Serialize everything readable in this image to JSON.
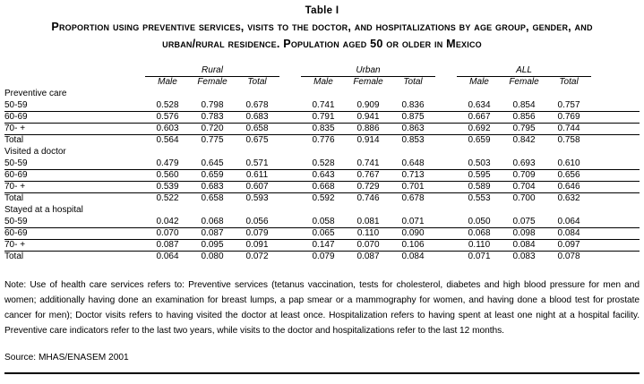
{
  "table": {
    "label": "Table I",
    "title": "Proportion using preventive services, visits to the doctor, and hospitalizations by age group, gender, and urban/rural residence. Population aged 50 or older in Mexico",
    "groups": [
      "Rural",
      "Urban",
      "ALL"
    ],
    "sub_columns": [
      "Male",
      "Female",
      "Total"
    ],
    "sections": [
      {
        "label": "Preventive care",
        "rows": [
          {
            "label": "50-59",
            "values": [
              "0.528",
              "0.798",
              "0.678",
              "0.741",
              "0.909",
              "0.836",
              "0.634",
              "0.854",
              "0.757"
            ]
          },
          {
            "label": "60-69",
            "values": [
              "0.576",
              "0.783",
              "0.683",
              "0.791",
              "0.941",
              "0.875",
              "0.667",
              "0.856",
              "0.769"
            ]
          },
          {
            "label": "70- +",
            "values": [
              "0.603",
              "0.720",
              "0.658",
              "0.835",
              "0.886",
              "0.863",
              "0.692",
              "0.795",
              "0.744"
            ]
          },
          {
            "label": "Total",
            "values": [
              "0.564",
              "0.775",
              "0.675",
              "0.776",
              "0.914",
              "0.853",
              "0.659",
              "0.842",
              "0.758"
            ]
          }
        ]
      },
      {
        "label": "Visited a doctor",
        "rows": [
          {
            "label": "50-59",
            "values": [
              "0.479",
              "0.645",
              "0.571",
              "0.528",
              "0.741",
              "0.648",
              "0.503",
              "0.693",
              "0.610"
            ]
          },
          {
            "label": "60-69",
            "values": [
              "0.560",
              "0.659",
              "0.611",
              "0.643",
              "0.767",
              "0.713",
              "0.595",
              "0.709",
              "0.656"
            ]
          },
          {
            "label": "70- +",
            "values": [
              "0.539",
              "0.683",
              "0.607",
              "0.668",
              "0.729",
              "0.701",
              "0.589",
              "0.704",
              "0.646"
            ]
          },
          {
            "label": "Total",
            "values": [
              "0.522",
              "0.658",
              "0.593",
              "0.592",
              "0.746",
              "0.678",
              "0.553",
              "0.700",
              "0.632"
            ]
          }
        ]
      },
      {
        "label": "Stayed at a hospital",
        "rows": [
          {
            "label": "50-59",
            "values": [
              "0.042",
              "0.068",
              "0.056",
              "0.058",
              "0.081",
              "0.071",
              "0.050",
              "0.075",
              "0.064"
            ]
          },
          {
            "label": "60-69",
            "values": [
              "0.070",
              "0.087",
              "0.079",
              "0.065",
              "0.110",
              "0.090",
              "0.068",
              "0.098",
              "0.084"
            ]
          },
          {
            "label": "70- +",
            "values": [
              "0.087",
              "0.095",
              "0.091",
              "0.147",
              "0.070",
              "0.106",
              "0.110",
              "0.084",
              "0.097"
            ]
          },
          {
            "label": "Total",
            "values": [
              "0.064",
              "0.080",
              "0.072",
              "0.079",
              "0.087",
              "0.084",
              "0.071",
              "0.083",
              "0.078"
            ]
          }
        ]
      }
    ],
    "note": "Note: Use of health care services refers to: Preventive services (tetanus vaccination, tests for cholesterol, diabetes and high blood pressure for men and women; additionally having done an examination for breast lumps, a pap smear or a mammography for women, and having done a blood test for prostate cancer for men); Doctor visits refers to having visited the doctor at least once. Hospitalization refers to having spent at least one night at a hospital facility. Preventive care indicators refer to the last two years, while visits to the doctor and hospitalizations refer to the last 12 months.",
    "source": "Source: MHAS/ENASEM 2001"
  }
}
